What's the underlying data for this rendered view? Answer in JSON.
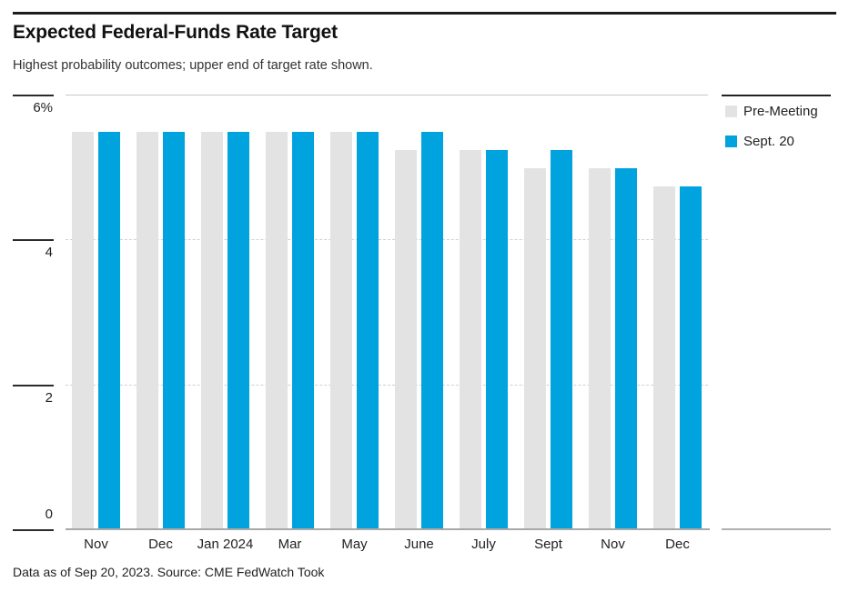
{
  "header": {
    "title": "Expected Federal-Funds Rate Target",
    "subtitle": "Highest probability outcomes; upper end of target rate shown."
  },
  "legend": {
    "position": "top-right",
    "items": [
      {
        "label": "Pre-Meeting",
        "color": "#e3e3e3"
      },
      {
        "label": "Sept. 20",
        "color": "#00a3dd"
      }
    ]
  },
  "chart_data": {
    "type": "bar",
    "title": "Expected Federal-Funds Rate Target",
    "subtitle": "Highest probability outcomes; upper end of target rate shown.",
    "categories": [
      "Nov",
      "Dec",
      "Jan 2024",
      "Mar",
      "May",
      "June",
      "July",
      "Sept",
      "Nov",
      "Dec"
    ],
    "series": [
      {
        "name": "Pre-Meeting",
        "color": "#e3e3e3",
        "values": [
          5.5,
          5.5,
          5.5,
          5.5,
          5.5,
          5.25,
          5.25,
          5.0,
          5.0,
          4.75
        ]
      },
      {
        "name": "Sept. 20",
        "color": "#00a3dd",
        "values": [
          5.5,
          5.5,
          5.5,
          5.5,
          5.5,
          5.5,
          5.25,
          5.25,
          5.0,
          4.75
        ]
      }
    ],
    "xlabel": "",
    "ylabel": "",
    "ylim": [
      0,
      6
    ],
    "yticks": [
      {
        "value": 6,
        "label": "6%"
      },
      {
        "value": 4,
        "label": "4"
      },
      {
        "value": 2,
        "label": "2"
      },
      {
        "value": 0,
        "label": "0"
      }
    ],
    "grid": "horizontal; solid line at 6, dashed lines at 4 and 2, solid gray baseline at 0",
    "legend_position": "top-right",
    "colors": {
      "pre_meeting_bar": "#e3e3e3",
      "sept20_bar": "#00a3dd",
      "baseline": "#a8a8a8",
      "gridline": "#d0d0d0",
      "tick": "#2a2a2a",
      "top_rule": "#1d1d1d"
    }
  },
  "footer": {
    "note": "Data as of Sep 20, 2023. Source: CME FedWatch Took"
  }
}
